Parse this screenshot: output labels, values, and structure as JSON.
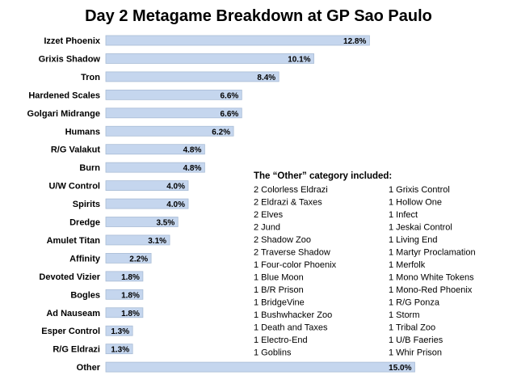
{
  "chart_data": {
    "type": "bar",
    "orientation": "horizontal",
    "title": "Day 2 Metagame Breakdown at GP Sao Paulo",
    "xlabel": "",
    "ylabel": "",
    "xlim": [
      0,
      15
    ],
    "grid": false,
    "value_suffix": "%",
    "bar_color": "#c5d6ee",
    "bar_edge_color": "#a9bcd6",
    "categories": [
      "Izzet Phoenix",
      "Grixis Shadow",
      "Tron",
      "Hardened Scales",
      "Golgari Midrange",
      "Humans",
      "R/G Valakut",
      "Burn",
      "U/W Control",
      "Spirits",
      "Dredge",
      "Amulet Titan",
      "Affinity",
      "Devoted Vizier",
      "Bogles",
      "Ad Nauseam",
      "Esper Control",
      "R/G Eldrazi",
      "Other"
    ],
    "values": [
      12.8,
      10.1,
      8.4,
      6.6,
      6.6,
      6.2,
      4.8,
      4.8,
      4.0,
      4.0,
      3.5,
      3.1,
      2.2,
      1.8,
      1.8,
      1.8,
      1.3,
      1.3,
      15.0
    ],
    "value_labels": [
      "12.8%",
      "10.1%",
      "8.4%",
      "6.6%",
      "6.6%",
      "6.2%",
      "4.8%",
      "4.8%",
      "4.0%",
      "4.0%",
      "3.5%",
      "3.1%",
      "2.2%",
      "1.8%",
      "1.8%",
      "1.8%",
      "1.3%",
      "1.3%",
      "15.0%"
    ],
    "annotation": {
      "heading": "The “Other” category included:",
      "column_1": [
        "2 Colorless Eldrazi",
        "2 Eldrazi & Taxes",
        "2 Elves",
        "2 Jund",
        "2 Shadow Zoo",
        "2 Traverse Shadow",
        "1 Four-color Phoenix",
        "1 Blue Moon",
        "1 B/R Prison",
        "1 BridgeVine",
        "1 Bushwhacker Zoo",
        "1 Death and Taxes",
        "1 Electro-End",
        "1 Goblins"
      ],
      "column_2": [
        "1 Grixis Control",
        "1 Hollow One",
        "1 Infect",
        "1 Jeskai Control",
        "1 Living End",
        "1 Martyr Proclamation",
        "1 Merfolk",
        "1 Mono White Tokens",
        "1 Mono-Red Phoenix",
        "1 R/G Ponza",
        "1 Storm",
        "1 Tribal Zoo",
        "1 U/B Faeries",
        "1 Whir Prison"
      ]
    }
  }
}
